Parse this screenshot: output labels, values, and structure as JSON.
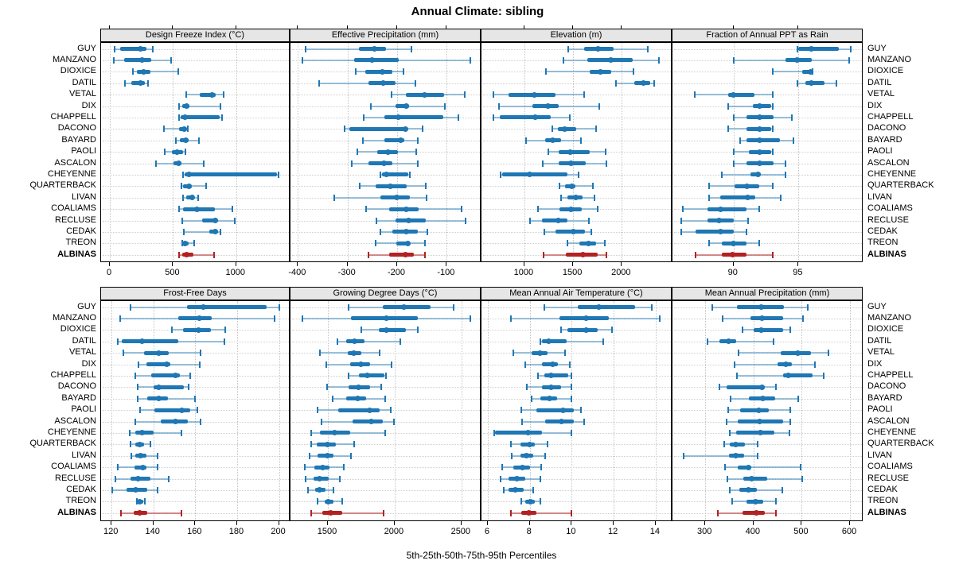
{
  "title": "Annual Climate: sibling",
  "caption": "5th-25th-50th-75th-95th Percentiles",
  "sites": [
    "GUY",
    "MANZANO",
    "DIOXICE",
    "DATIL",
    "VETAL",
    "DIX",
    "CHAPPELL",
    "DACONO",
    "BAYARD",
    "PAOLI",
    "ASCALON",
    "CHEYENNE",
    "QUARTERBACK",
    "LIVAN",
    "COALIAMS",
    "RECLUSE",
    "CEDAK",
    "TREON",
    "ALBINAS"
  ],
  "highlight_site": "ALBINAS",
  "colors": {
    "series": "#1F77B4",
    "series_light": "rgba(31,119,180,0.45)",
    "highlight": "#B22222",
    "highlight_light": "rgba(178,34,34,0.5)",
    "strip_bg": "#E6E6E6",
    "grid": "#C4C4C4"
  },
  "chart_data": {
    "type": "dotplot-percentiles",
    "percentile_labels": [
      "5th",
      "25th",
      "50th",
      "75th",
      "95th"
    ],
    "grid_layout": "2 rows x 4 cols",
    "panels": [
      {
        "title": "Design Freeze Index (°C)",
        "xlim": [
          -70,
          1430
        ],
        "ticks": [
          0,
          500,
          1000
        ],
        "values": [
          [
            35,
            80,
            240,
            290,
            340
          ],
          [
            30,
            110,
            255,
            325,
            485
          ],
          [
            180,
            212,
            270,
            320,
            540
          ],
          [
            120,
            170,
            240,
            275,
            300
          ],
          [
            605,
            710,
            810,
            835,
            900
          ],
          [
            545,
            570,
            610,
            630,
            875
          ],
          [
            545,
            560,
            595,
            870,
            890
          ],
          [
            430,
            545,
            587,
            612,
            620
          ],
          [
            525,
            556,
            604,
            625,
            708
          ],
          [
            435,
            494,
            531,
            577,
            598
          ],
          [
            365,
            505,
            545,
            565,
            745
          ],
          [
            580,
            592,
            625,
            1325,
            1335
          ],
          [
            565,
            577,
            625,
            650,
            760
          ],
          [
            577,
            604,
            650,
            670,
            700
          ],
          [
            550,
            577,
            687,
            833,
            973
          ],
          [
            570,
            733,
            833,
            858,
            990
          ],
          [
            587,
            785,
            837,
            858,
            875
          ],
          [
            570,
            577,
            598,
            625,
            670
          ],
          [
            545,
            570,
            605,
            660,
            825
          ]
        ]
      },
      {
        "title": "Effective Precipitation (mm)",
        "xlim": [
          -415,
          -30
        ],
        "ticks": [
          -400,
          -300,
          -200,
          -100
        ],
        "values": [
          [
            -384,
            -277,
            -245,
            -222,
            -171
          ],
          [
            -391,
            -286,
            -251,
            -197,
            -53
          ],
          [
            -283,
            -264,
            -230,
            -210,
            -187
          ],
          [
            -358,
            -258,
            -228,
            -203,
            -163
          ],
          [
            -211,
            -182,
            -144,
            -106,
            -64
          ],
          [
            -253,
            -203,
            -182,
            -176,
            -103
          ],
          [
            -267,
            -225,
            -197,
            -107,
            -76
          ],
          [
            -306,
            -296,
            -184,
            -179,
            -149
          ],
          [
            -269,
            -225,
            -193,
            -186,
            -158
          ],
          [
            -281,
            -240,
            -219,
            -199,
            -162
          ],
          [
            -292,
            -257,
            -226,
            -209,
            -158
          ],
          [
            -233,
            -230,
            -222,
            -178,
            -174
          ],
          [
            -276,
            -243,
            -214,
            -181,
            -143
          ],
          [
            -326,
            -234,
            -201,
            -174,
            -141
          ],
          [
            -262,
            -216,
            -182,
            -156,
            -70
          ],
          [
            -241,
            -203,
            -176,
            -142,
            -62
          ],
          [
            -233,
            -209,
            -182,
            -159,
            -139
          ],
          [
            -243,
            -201,
            -178,
            -174,
            -144
          ],
          [
            -258,
            -216,
            -184,
            -166,
            -144
          ]
        ]
      },
      {
        "title": "Elevation (m)",
        "xlim": [
          560,
          2520
        ],
        "ticks": [
          1000,
          1500,
          2000
        ],
        "values": [
          [
            1450,
            1615,
            1755,
            1915,
            2270
          ],
          [
            1400,
            1645,
            1885,
            2115,
            2385
          ],
          [
            1220,
            1673,
            1777,
            1890,
            2120
          ],
          [
            1940,
            2125,
            2225,
            2290,
            2335
          ],
          [
            685,
            840,
            1105,
            1320,
            1610
          ],
          [
            740,
            1085,
            1245,
            1350,
            1770
          ],
          [
            680,
            750,
            1115,
            1270,
            1470
          ],
          [
            1285,
            1345,
            1415,
            1530,
            1735
          ],
          [
            1015,
            1210,
            1290,
            1373,
            1578
          ],
          [
            1243,
            1352,
            1474,
            1668,
            1830
          ],
          [
            1185,
            1355,
            1475,
            1630,
            1840
          ],
          [
            760,
            770,
            1055,
            1440,
            1560
          ],
          [
            1360,
            1415,
            1490,
            1523,
            1705
          ],
          [
            1380,
            1440,
            1530,
            1597,
            1720
          ],
          [
            1136,
            1360,
            1477,
            1590,
            1750
          ],
          [
            1060,
            1183,
            1352,
            1440,
            1665
          ],
          [
            1204,
            1320,
            1504,
            1620,
            1687
          ],
          [
            1440,
            1565,
            1660,
            1733,
            1828
          ],
          [
            1200,
            1428,
            1605,
            1750,
            1845
          ]
        ]
      },
      {
        "title": "Fraction of Annual PPT as Rain",
        "xlim": [
          85.3,
          100
        ],
        "ticks": [
          90,
          95
        ],
        "values": [
          [
            94.9,
            95.0,
            96.0,
            98.1,
            99.0
          ],
          [
            90.0,
            94.0,
            94.9,
            96.0,
            98.9
          ],
          [
            93.0,
            95.3,
            95.9,
            96.0,
            96.1
          ],
          [
            94.9,
            95.5,
            96.0,
            97.0,
            97.9
          ],
          [
            87.0,
            89.6,
            90.0,
            91.6,
            93.0
          ],
          [
            89.6,
            91.5,
            92.0,
            92.9,
            93.0
          ],
          [
            90.0,
            91.0,
            92.0,
            93.1,
            94.5
          ],
          [
            89.6,
            91.0,
            92.0,
            92.9,
            93.0
          ],
          [
            90.5,
            91.0,
            92.0,
            93.6,
            94.6
          ],
          [
            90.0,
            91.2,
            92.0,
            92.9,
            93.0
          ],
          [
            90.0,
            91.0,
            92.0,
            93.1,
            94.0
          ],
          [
            89.1,
            91.3,
            91.9,
            92.1,
            94.0
          ],
          [
            88.1,
            90.1,
            91.0,
            92.0,
            93.0
          ],
          [
            88.1,
            89.0,
            91.1,
            91.7,
            93.6
          ],
          [
            86.1,
            88.0,
            89.0,
            91.0,
            92.0
          ],
          [
            86.0,
            88.0,
            88.9,
            90.0,
            91.1
          ],
          [
            86.0,
            87.1,
            89.0,
            90.0,
            91.0
          ],
          [
            88.1,
            89.1,
            90.0,
            91.0,
            92.0
          ],
          [
            87.1,
            89.1,
            89.9,
            91.0,
            93.0
          ]
        ]
      },
      {
        "title": "Frost-Free Days",
        "xlim": [
          115,
          205.5
        ],
        "ticks": [
          120,
          140,
          160,
          180,
          200
        ],
        "values": [
          [
            129,
            156,
            164,
            194,
            200
          ],
          [
            124,
            152,
            162,
            168,
            198
          ],
          [
            149,
            154,
            161.5,
            167.5,
            174.5
          ],
          [
            123,
            125,
            134.5,
            152,
            174
          ],
          [
            125.5,
            135.5,
            142.5,
            147.5,
            162.5
          ],
          [
            133,
            136.5,
            146.5,
            148,
            162
          ],
          [
            131.5,
            139,
            150.5,
            152.5,
            157.5
          ],
          [
            132.5,
            140,
            142.5,
            154.5,
            157
          ],
          [
            132.5,
            137,
            142.5,
            147,
            160
          ],
          [
            133.5,
            140.5,
            153.5,
            157.5,
            161
          ],
          [
            131.5,
            143.5,
            150.5,
            156.5,
            162.5
          ],
          [
            128.5,
            131.5,
            134.5,
            140,
            153.5
          ],
          [
            129,
            131.5,
            133.5,
            135.5,
            138.5
          ],
          [
            129.5,
            131.5,
            134,
            136.5,
            142
          ],
          [
            123,
            131,
            135,
            136.5,
            142
          ],
          [
            122,
            129,
            132.5,
            138.5,
            147.5
          ],
          [
            120.5,
            127,
            131.5,
            137,
            142
          ],
          [
            132,
            132.5,
            133.5,
            135,
            136
          ],
          [
            124.5,
            130.5,
            133.5,
            137,
            153.5
          ]
        ]
      },
      {
        "title": "Growing Degree Days (°C)",
        "xlim": [
          1220,
          2650
        ],
        "ticks": [
          1500,
          2000,
          2500
        ],
        "values": [
          [
            1655,
            1910,
            2070,
            2270,
            2440
          ],
          [
            1310,
            1675,
            1935,
            2175,
            2565
          ],
          [
            1750,
            1880,
            1940,
            2085,
            2175
          ],
          [
            1570,
            1640,
            1700,
            1775,
            2040
          ],
          [
            1440,
            1650,
            1695,
            1750,
            1890
          ],
          [
            1490,
            1665,
            1745,
            1815,
            1975
          ],
          [
            1655,
            1735,
            1795,
            1925,
            1935
          ],
          [
            1495,
            1655,
            1730,
            1815,
            1900
          ],
          [
            1535,
            1640,
            1725,
            1785,
            1930
          ],
          [
            1420,
            1580,
            1815,
            1890,
            1970
          ],
          [
            1450,
            1685,
            1825,
            1910,
            1995
          ],
          [
            1375,
            1440,
            1550,
            1665,
            1930
          ],
          [
            1375,
            1415,
            1500,
            1560,
            1695
          ],
          [
            1365,
            1425,
            1495,
            1540,
            1675
          ],
          [
            1330,
            1400,
            1460,
            1510,
            1620
          ],
          [
            1335,
            1395,
            1440,
            1505,
            1590
          ],
          [
            1350,
            1405,
            1440,
            1480,
            1540
          ],
          [
            1425,
            1475,
            1505,
            1540,
            1610
          ],
          [
            1375,
            1460,
            1520,
            1605,
            1920
          ]
        ]
      },
      {
        "title": "Mean Annual Air Temperature (°C)",
        "xlim": [
          5.7,
          14.8
        ],
        "ticks": [
          6,
          8,
          10,
          12,
          14
        ],
        "values": [
          [
            8.7,
            10.3,
            11.3,
            13.0,
            13.8
          ],
          [
            7.1,
            9.4,
            10.7,
            11.75,
            14.2
          ],
          [
            9.5,
            9.8,
            10.7,
            11.25,
            11.9
          ],
          [
            8.5,
            8.6,
            8.9,
            9.75,
            11.5
          ],
          [
            7.2,
            8.1,
            8.5,
            8.85,
            9.7
          ],
          [
            7.8,
            8.6,
            9.1,
            9.35,
            9.9
          ],
          [
            8.4,
            8.7,
            9.0,
            9.85,
            10.0
          ],
          [
            7.85,
            8.6,
            9.0,
            9.5,
            10.0
          ],
          [
            8.1,
            8.5,
            8.95,
            9.3,
            10.0
          ],
          [
            7.6,
            8.3,
            9.6,
            10.1,
            10.45
          ],
          [
            7.65,
            8.75,
            9.5,
            10.1,
            10.6
          ],
          [
            6.3,
            6.35,
            7.9,
            8.6,
            10.0
          ],
          [
            7.1,
            7.55,
            8.0,
            8.25,
            8.85
          ],
          [
            7.15,
            7.55,
            7.85,
            8.15,
            8.75
          ],
          [
            6.7,
            7.2,
            7.65,
            8.0,
            8.55
          ],
          [
            6.6,
            7.0,
            7.4,
            7.8,
            8.5
          ],
          [
            6.75,
            7.0,
            7.3,
            7.7,
            8.15
          ],
          [
            7.6,
            7.8,
            8.05,
            8.25,
            8.5
          ],
          [
            7.1,
            7.6,
            7.95,
            8.3,
            10.0
          ]
        ]
      },
      {
        "title": "Mean Annual Precipitation (mm)",
        "xlim": [
          232,
          628
        ],
        "ticks": [
          300,
          400,
          500,
          600
        ],
        "values": [
          [
            314,
            366,
            416,
            463,
            513
          ],
          [
            336,
            394,
            417,
            462,
            502
          ],
          [
            377,
            401,
            416,
            461,
            476
          ],
          [
            304,
            330,
            348,
            364,
            442
          ],
          [
            369,
            457,
            492,
            519,
            555
          ],
          [
            361,
            450,
            467,
            480,
            528
          ],
          [
            366,
            461,
            472,
            522,
            546
          ],
          [
            329,
            344,
            418,
            423,
            447
          ],
          [
            353,
            390,
            420,
            445,
            493
          ],
          [
            348,
            372,
            411,
            431,
            476
          ],
          [
            344,
            368,
            413,
            461,
            476
          ],
          [
            350,
            364,
            415,
            443,
            475
          ],
          [
            340,
            350,
            363,
            382,
            408
          ],
          [
            255,
            349,
            363,
            381,
            408
          ],
          [
            341,
            368,
            389,
            396,
            498
          ],
          [
            346,
            379,
            396,
            428,
            501
          ],
          [
            351,
            370,
            390,
            407,
            459
          ],
          [
            356,
            385,
            405,
            420,
            447
          ],
          [
            326,
            377,
            406,
            424,
            446
          ]
        ]
      }
    ]
  }
}
